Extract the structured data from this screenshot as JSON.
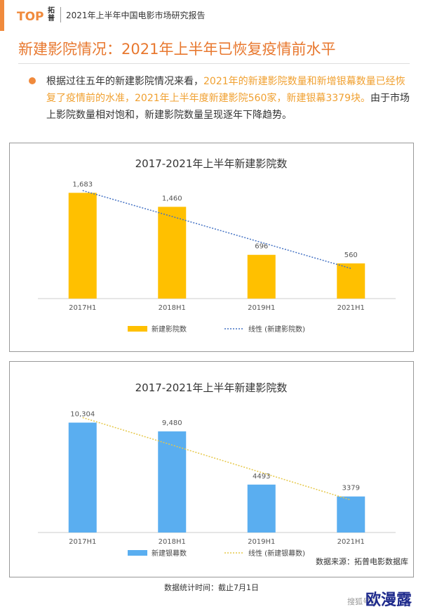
{
  "header": {
    "logo_text": "TOP",
    "logo_cn": "拓普",
    "report_title": "2021年上半年中国电影市场研究报告"
  },
  "page_title": "新建影院情况：2021年上半年已恢复疫情前水平",
  "bullet": {
    "text_1": "根据过往五年的新建影院情况来看，",
    "highlight": "2021年的新建影院数量和新增银幕数量已经恢复了疫情前的水准，2021年上半年度新建影院560家，新建银幕3379块。",
    "text_2": "由于市场上影院数量相对饱和，新建影院数量呈现逐年下降趋势。"
  },
  "colors": {
    "accent": "#f08a3c",
    "bar1": "#ffc000",
    "bar2": "#5aaef0",
    "trend1": "#4472c4",
    "trend2": "#e6c84a"
  },
  "chart_data": [
    {
      "type": "bar",
      "title": "2017-2021年上半年新建影院数",
      "categories": [
        "2017H1",
        "2018H1",
        "2019H1",
        "2021H1"
      ],
      "series": [
        {
          "name": "新建影院数",
          "values": [
            1683,
            1460,
            696,
            560
          ]
        }
      ],
      "data_labels": [
        "1,683",
        "1,460",
        "696",
        "560"
      ],
      "trendline": {
        "name": "线性 (新建影院数)",
        "type": "linear"
      },
      "ylim": [
        0,
        1800
      ],
      "legend_position": "bottom",
      "grid": false
    },
    {
      "type": "bar",
      "title": "2017-2021年上半年新建影院数",
      "categories": [
        "2017H1",
        "2018H1",
        "2019H1",
        "2021H1"
      ],
      "series": [
        {
          "name": "新建银幕数",
          "values": [
            10304,
            9480,
            4493,
            3379
          ]
        }
      ],
      "data_labels": [
        "10,304",
        "9,480",
        "4493",
        "3379"
      ],
      "trendline": {
        "name": "线性 (新建银幕数)",
        "type": "linear"
      },
      "ylim": [
        0,
        11000
      ],
      "legend_position": "bottom",
      "grid": false,
      "source": "数据来源：拓普电影数据库"
    }
  ],
  "footer": {
    "note": "数据统计时间：截止7月1日",
    "watermark_small": "搜狐号@",
    "watermark_big": "欧漫露"
  }
}
